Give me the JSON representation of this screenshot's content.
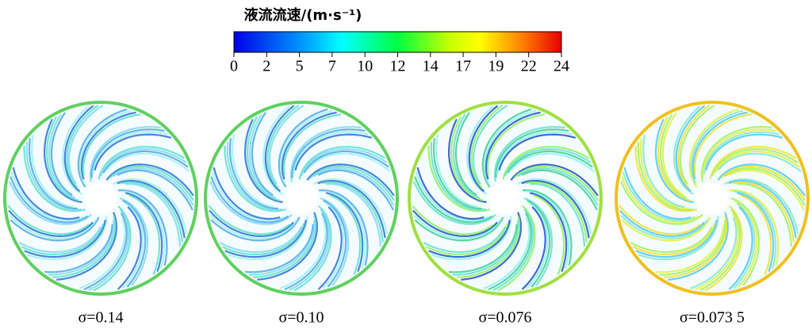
{
  "colorbar": {
    "title": "液流流速/(m·s⁻¹)",
    "lim": [
      0,
      24
    ],
    "ticks": [
      0,
      {
        "value": 2.4,
        "label": "2"
      },
      {
        "value": 4.8,
        "label": "5"
      },
      {
        "value": 7.2,
        "label": "7"
      },
      {
        "value": 9.6,
        "label": "10"
      },
      12,
      {
        "value": 14.4,
        "label": "14"
      },
      {
        "value": 16.8,
        "label": "17"
      },
      {
        "value": 19.2,
        "label": "19"
      },
      {
        "value": 21.6,
        "label": "22"
      },
      24
    ]
  },
  "panels": [
    {
      "label": "σ=0.14"
    },
    {
      "label": "σ=0.10"
    },
    {
      "label": "σ=0.076"
    },
    {
      "label": "σ=0.073 5"
    }
  ]
}
